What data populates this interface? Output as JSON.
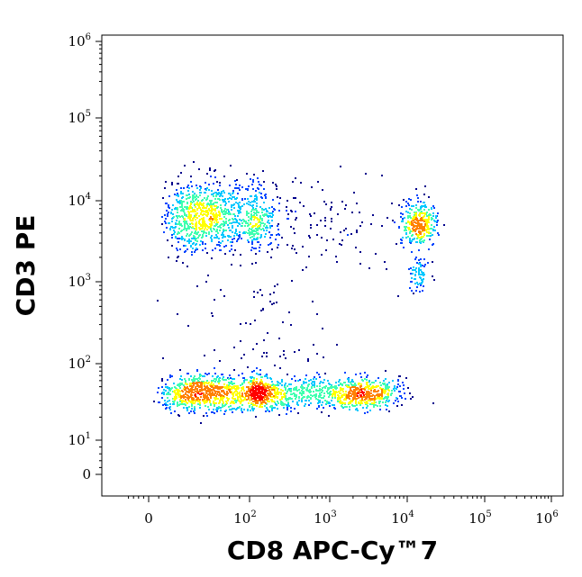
{
  "chart_data": {
    "type": "scatter",
    "title": "",
    "xlabel": "CD8 APC-Cy™7",
    "ylabel": "CD3 PE",
    "x_scale": "biexponential",
    "y_scale": "biexponential",
    "xlim": [
      -50,
      1000000
    ],
    "ylim": [
      -5,
      1000000
    ],
    "x_ticks": [
      {
        "value": 0,
        "base": "0",
        "exp": ""
      },
      {
        "value": 100,
        "base": "10",
        "exp": "2"
      },
      {
        "value": 1000,
        "base": "10",
        "exp": "3"
      },
      {
        "value": 10000,
        "base": "10",
        "exp": "4"
      },
      {
        "value": 100000,
        "base": "10",
        "exp": "5"
      },
      {
        "value": 1000000,
        "base": "10",
        "exp": "6"
      }
    ],
    "y_ticks": [
      {
        "value": 0,
        "base": "0",
        "exp": ""
      },
      {
        "value": 10,
        "base": "10",
        "exp": "1"
      },
      {
        "value": 100,
        "base": "10",
        "exp": "2"
      },
      {
        "value": 1000,
        "base": "10",
        "exp": "3"
      },
      {
        "value": 10000,
        "base": "10",
        "exp": "4"
      },
      {
        "value": 100000,
        "base": "10",
        "exp": "5"
      },
      {
        "value": 1000000,
        "base": "10",
        "exp": "6"
      }
    ],
    "grid": false,
    "density_colormap": [
      "#00008b",
      "#0044ff",
      "#00c8ff",
      "#40ffb0",
      "#ffff00",
      "#ff8000",
      "#ff0000"
    ],
    "populations": [
      {
        "x_center": 65,
        "y_center": 6500,
        "x_spread": 0.25,
        "y_spread": 0.22,
        "count": 1100
      },
      {
        "x_center": 14000,
        "y_center": 5200,
        "x_spread": 0.12,
        "y_spread": 0.14,
        "count": 330
      },
      {
        "x_center": 14000,
        "y_center": 1300,
        "x_spread": 0.07,
        "y_spread": 0.1,
        "count": 70
      },
      {
        "x_center": 70,
        "y_center": 42,
        "x_spread": 0.28,
        "y_spread": 0.12,
        "count": 1100
      },
      {
        "x_center": 2500,
        "y_center": 42,
        "x_spread": 0.25,
        "y_spread": 0.1,
        "count": 550
      },
      {
        "x_center": 400,
        "y_center": 42,
        "x_spread": 0.3,
        "y_spread": 0.1,
        "count": 300
      },
      {
        "x_center": 1000,
        "y_center": 6000,
        "x_spread": 0.55,
        "y_spread": 0.25,
        "count": 110
      },
      {
        "x_center": 150,
        "y_center": 250,
        "x_spread": 0.45,
        "y_spread": 0.45,
        "count": 90
      }
    ]
  }
}
